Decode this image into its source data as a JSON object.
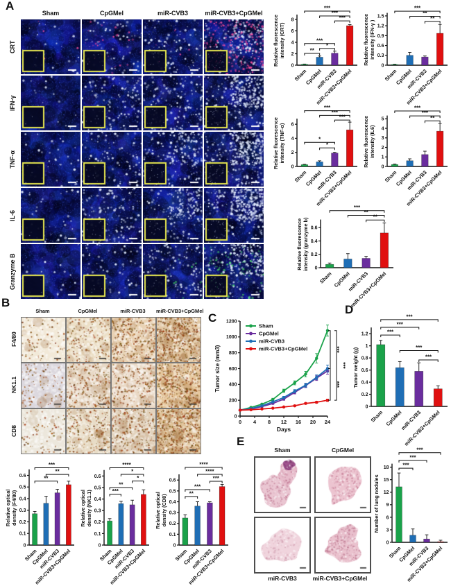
{
  "groups": [
    "Sham",
    "CpGMel",
    "miR-CVB3",
    "miR-CVB3+CpGMel"
  ],
  "colors": {
    "sham": "#1aa24a",
    "cpgmel_bar": "#1f6eb5",
    "mir_cvb3_bar": "#6a2d9e",
    "combo": "#e01010"
  },
  "panelA": {
    "label": "A",
    "col_headers": [
      "Sham",
      "CpGMel",
      "miR-CVB3",
      "miR-CVB3+CpGMel"
    ],
    "rows": [
      {
        "label": "CRT",
        "speckle": [
          0.06,
          0.18,
          0.25,
          0.45
        ],
        "accent": [
          0.02,
          0.1,
          0.02,
          0.85
        ],
        "accent_color": "#ff4fa0"
      },
      {
        "label": "IFN-γ",
        "speckle": [
          0.05,
          0.3,
          0.35,
          0.75
        ]
      },
      {
        "label": "TNF-α",
        "speckle": [
          0.08,
          0.25,
          0.45,
          0.9
        ]
      },
      {
        "label": "IL-6",
        "speckle": [
          0.1,
          0.35,
          0.5,
          0.85
        ]
      },
      {
        "label": "Granzyme B",
        "speckle": [
          0.05,
          0.15,
          0.3,
          0.55
        ],
        "accent": [
          0,
          0,
          0.05,
          0.35
        ],
        "accent_color": "#47d86a"
      }
    ]
  },
  "panelB": {
    "label": "B",
    "col_headers": [
      "Sham",
      "CpGMel",
      "miR-CVB3",
      "miR-CVB3+CpGMel"
    ],
    "rows": [
      {
        "label": "F4/80",
        "base": [
          "#f2e9d8",
          "#ecdfc6",
          "#e9d2b4",
          "#e2c8a4"
        ],
        "dots": [
          0.15,
          0.32,
          0.55,
          0.8
        ]
      },
      {
        "label": "NK1.1",
        "base": [
          "#dcd8de",
          "#e8d9c6",
          "#ead9c6",
          "#e6c89e"
        ],
        "dots": [
          0.2,
          0.45,
          0.4,
          0.7
        ]
      },
      {
        "label": "CD8",
        "base": [
          "#ece7dc",
          "#e8dcc6",
          "#e2d2bc",
          "#e0c49c"
        ],
        "dots": [
          0.15,
          0.38,
          0.45,
          0.78
        ]
      }
    ]
  },
  "panelC": {
    "label": "C"
  },
  "panelD": {
    "label": "D"
  },
  "panelE": {
    "label": "E",
    "image_labels": [
      "Sham",
      "CpGMel",
      "miR-CVB3",
      "miR-CVB3+CpGMel"
    ]
  },
  "chart_data": [
    {
      "id": "crt",
      "type": "bar",
      "panel": "A",
      "ylabel": [
        "Relative fluorescence",
        "intensity (CRT)"
      ],
      "categories": [
        "Sham",
        "CpGMel",
        "miR-CVB3",
        "miR-CVB3+CpGMel"
      ],
      "values": [
        0.15,
        1.4,
        2.1,
        6.9
      ],
      "errors": [
        0.05,
        0.2,
        0.35,
        0.2
      ],
      "ymax": 8.6,
      "ytick_labels": [
        "0",
        "2",
        "4",
        "6",
        "8"
      ],
      "sig": [
        {
          "a": 0,
          "b": 1,
          "label": "**",
          "f": 0.24
        },
        {
          "a": 1,
          "b": 2,
          "label": "*",
          "f": 0.34
        },
        {
          "a": 0,
          "b": 2,
          "label": "***",
          "f": 0.44
        },
        {
          "a": 2,
          "b": 3,
          "label": "***",
          "f": 0.9
        },
        {
          "a": 1,
          "b": 3,
          "label": "***",
          "f": 1.0
        },
        {
          "a": 0,
          "b": 3,
          "label": "***",
          "f": 1.1
        }
      ]
    },
    {
      "id": "ifng",
      "type": "bar",
      "panel": "A",
      "ylabel": [
        "Relative fluorescence",
        "intensity (IFN-γ )"
      ],
      "categories": [
        "Sham",
        "CpGMel",
        "miR-CVB3",
        "miR-CVB3+CpGMel"
      ],
      "values": [
        0.02,
        0.3,
        0.25,
        0.97
      ],
      "errors": [
        0.01,
        0.09,
        0.03,
        0.27
      ],
      "ymax": 1.55,
      "ytick_labels": [
        "0",
        "0.3",
        "0.6",
        "0.9",
        "1.2",
        "1.5"
      ],
      "sig": [
        {
          "a": 2,
          "b": 3,
          "label": "**",
          "f": 0.86
        },
        {
          "a": 1,
          "b": 3,
          "label": "**",
          "f": 0.96
        },
        {
          "a": 0,
          "b": 3,
          "label": "***",
          "f": 1.06
        }
      ]
    },
    {
      "id": "tnfa",
      "type": "bar",
      "panel": "A",
      "ylabel": [
        "Relative fluorescence",
        "intensity (TNF-α)"
      ],
      "categories": [
        "Sham",
        "CpGMel",
        "miR-CVB3",
        "miR-CVB3+CpGMel"
      ],
      "values": [
        0.25,
        0.65,
        1.9,
        5.2
      ],
      "errors": [
        0.05,
        0.15,
        0.1,
        1.1
      ],
      "ymax": 6.6,
      "ytick_labels": [
        "0",
        "2",
        "4",
        "6"
      ],
      "sig": [
        {
          "a": 1,
          "b": 2,
          "label": "*",
          "f": 0.4
        },
        {
          "a": 0,
          "b": 2,
          "label": "*",
          "f": 0.52
        },
        {
          "a": 2,
          "b": 3,
          "label": "***",
          "f": 1.0
        },
        {
          "a": 1,
          "b": 3,
          "label": "***",
          "f": 1.1
        },
        {
          "a": 0,
          "b": 3,
          "label": "***",
          "f": 1.2
        }
      ]
    },
    {
      "id": "il6",
      "type": "bar",
      "panel": "A",
      "ylabel": [
        "Relative fluorescence",
        "intensity (IL6)"
      ],
      "categories": [
        "Sham",
        "CpGMel",
        "miR-CVB3",
        "miR-CVB3+CpGMel"
      ],
      "values": [
        0.2,
        0.6,
        1.25,
        3.7
      ],
      "errors": [
        0.05,
        0.2,
        0.35,
        0.8
      ],
      "ymax": 5.2,
      "ytick_labels": [
        "0",
        "1",
        "2",
        "3",
        "4",
        "5"
      ],
      "sig": [
        {
          "a": 2,
          "b": 3,
          "label": "**",
          "f": 0.92
        },
        {
          "a": 1,
          "b": 3,
          "label": "***",
          "f": 1.02
        },
        {
          "a": 0,
          "b": 3,
          "label": "***",
          "f": 1.12
        }
      ]
    },
    {
      "id": "grzb",
      "type": "bar",
      "panel": "A",
      "ylabel": [
        "Relative fluorescence",
        "intensity (granzyme b)"
      ],
      "categories": [
        "Sham",
        "CpGMel",
        "miR-CVB3",
        "miR-CVB3+CpGMel"
      ],
      "values": [
        0.05,
        0.13,
        0.14,
        0.52
      ],
      "errors": [
        0.02,
        0.08,
        0.03,
        0.15
      ],
      "ymax": 0.7,
      "ytick_labels": [
        "0",
        "0.2",
        "0.4",
        "0.6"
      ],
      "sig": [
        {
          "a": 2,
          "b": 3,
          "label": "**",
          "f": 1.02
        },
        {
          "a": 1,
          "b": 3,
          "label": "**",
          "f": 1.12
        },
        {
          "a": 0,
          "b": 3,
          "label": "***",
          "f": 1.22
        }
      ]
    },
    {
      "id": "f480",
      "type": "bar",
      "panel": "B",
      "ylabel": [
        "Relative optical",
        "density (F4/80)"
      ],
      "categories": [
        "Sham",
        "CpGMel",
        "miR-CVB3",
        "miR-CVB3+CpGMel"
      ],
      "values": [
        0.27,
        0.36,
        0.45,
        0.52
      ],
      "errors": [
        0.02,
        0.06,
        0.03,
        0.03
      ],
      "ymax": 0.64,
      "ytick_labels": [
        "0",
        "0.1",
        "0.2",
        "0.3",
        "0.4",
        "0.5",
        "0.6"
      ],
      "sig": [
        {
          "a": 0,
          "b": 2,
          "label": "**",
          "f": 0.86
        },
        {
          "a": 1,
          "b": 3,
          "label": "**",
          "f": 0.95
        },
        {
          "a": 0,
          "b": 3,
          "label": "***",
          "f": 1.04
        }
      ]
    },
    {
      "id": "nk11",
      "type": "bar",
      "panel": "B",
      "ylabel": [
        "Relative optical",
        "density (NK1.1)"
      ],
      "categories": [
        "Sham",
        "CpGMel",
        "miR-CVB3",
        "miR-CVB3+CpGMel"
      ],
      "values": [
        0.21,
        0.36,
        0.35,
        0.44
      ],
      "errors": [
        0.02,
        0.02,
        0.04,
        0.04
      ],
      "ymax": 0.64,
      "ytick_labels": [
        "0",
        "0.1",
        "0.2",
        "0.3",
        "0.4",
        "0.5",
        "0.6"
      ],
      "sig": [
        {
          "a": 0,
          "b": 1,
          "label": "***",
          "f": 0.69
        },
        {
          "a": 0,
          "b": 2,
          "label": "**",
          "f": 0.78
        },
        {
          "a": 2,
          "b": 3,
          "label": "*",
          "f": 0.87
        },
        {
          "a": 1,
          "b": 3,
          "label": "*",
          "f": 0.96
        },
        {
          "a": 0,
          "b": 3,
          "label": "****",
          "f": 1.05
        }
      ]
    },
    {
      "id": "cd8",
      "type": "bar",
      "panel": "B",
      "ylabel": [
        "Relative optical",
        "density (CD8)"
      ],
      "categories": [
        "Sham",
        "CpGMel",
        "miR-CVB3",
        "miR-CVB3+CpGMel"
      ],
      "values": [
        0.25,
        0.36,
        0.39,
        0.54
      ],
      "errors": [
        0.03,
        0.04,
        0.01,
        0.02
      ],
      "ymax": 0.64,
      "ytick_labels": [
        "0",
        "0.1",
        "0.2",
        "0.3",
        "0.4",
        "0.5",
        "0.6"
      ],
      "sig": [
        {
          "a": 0,
          "b": 1,
          "label": "**",
          "f": 0.7
        },
        {
          "a": 0,
          "b": 2,
          "label": "***",
          "f": 0.8
        },
        {
          "a": 2,
          "b": 3,
          "label": "***",
          "f": 0.92
        },
        {
          "a": 1,
          "b": 3,
          "label": "****",
          "f": 1.02
        },
        {
          "a": 0,
          "b": 3,
          "label": "****",
          "f": 1.12
        }
      ]
    },
    {
      "id": "tumor_size",
      "type": "line",
      "panel": "C",
      "ylabel": "Tumor size (mm3)",
      "xlabel": "Days",
      "x": [
        0,
        3,
        6,
        9,
        12,
        15,
        18,
        21,
        24
      ],
      "xtick_values": [
        0,
        4,
        8,
        12,
        16,
        20,
        24
      ],
      "xtick_labels": [
        "0",
        "4",
        "8",
        "12",
        "16",
        "20",
        "24"
      ],
      "ymax": 1200,
      "ytick_step": 200,
      "series": [
        {
          "name": "Sham",
          "color": "#1aa24a",
          "values": [
            75,
            110,
            150,
            210,
            320,
            420,
            530,
            730,
            1080
          ],
          "errors": [
            5,
            8,
            10,
            15,
            20,
            25,
            35,
            60,
            70
          ]
        },
        {
          "name": "CpGMel",
          "color": "#6a2d9e",
          "values": [
            75,
            90,
            120,
            160,
            215,
            300,
            385,
            480,
            570
          ],
          "errors": [
            5,
            5,
            8,
            10,
            15,
            20,
            25,
            30,
            40
          ]
        },
        {
          "name": "miR-CVB3",
          "color": "#1f6eb5",
          "values": [
            75,
            95,
            130,
            180,
            235,
            315,
            390,
            490,
            600
          ],
          "errors": [
            5,
            5,
            8,
            10,
            15,
            20,
            25,
            30,
            45
          ]
        },
        {
          "name": "miR-CVB3+CpGMel",
          "color": "#e01010",
          "values": [
            75,
            80,
            90,
            100,
            115,
            130,
            160,
            175,
            200
          ],
          "errors": [
            4,
            4,
            5,
            6,
            8,
            8,
            10,
            12,
            15
          ]
        }
      ],
      "sig": [
        {
          "y1": 1080,
          "y2": 600,
          "label": "***",
          "off": 0
        },
        {
          "y1": 600,
          "y2": 200,
          "label": "***",
          "off": 0
        },
        {
          "y1": 1080,
          "y2": 200,
          "label": "***",
          "off": 9
        }
      ]
    },
    {
      "id": "tumor_weight",
      "type": "bar",
      "panel": "D",
      "ylabel": [
        "Tumor weight (g)"
      ],
      "categories": [
        "Sham",
        "CpGMel",
        "miR-CVB3",
        "miR-CVB3+CpGMel"
      ],
      "values": [
        1.02,
        0.64,
        0.58,
        0.29
      ],
      "errors": [
        0.07,
        0.1,
        0.14,
        0.05
      ],
      "ymax": 1.28,
      "ytick_labels": [
        "0",
        "0.2",
        "0.4",
        "0.6",
        "0.8",
        "1",
        "1.2"
      ],
      "sig": [
        {
          "a": 2,
          "b": 3,
          "label": "***",
          "f": 0.6
        },
        {
          "a": 1,
          "b": 3,
          "label": "***",
          "f": 0.72
        },
        {
          "a": 0,
          "b": 1,
          "label": "***",
          "f": 0.92
        },
        {
          "a": 0,
          "b": 2,
          "label": "***",
          "f": 1.02
        },
        {
          "a": 0,
          "b": 3,
          "label": "***",
          "f": 1.12
        }
      ]
    },
    {
      "id": "lung_nodules",
      "type": "bar",
      "panel": "E",
      "ylabel": [
        "Number of lung nodules"
      ],
      "categories": [
        "Sham",
        "CpGMel",
        "miR-CVB3",
        "miR-CVB3+CpGMel"
      ],
      "values": [
        13.3,
        1.7,
        0.8,
        0.15
      ],
      "errors": [
        3.3,
        1.5,
        1.0,
        0.35
      ],
      "ymax": 18.5,
      "ytick_labels": [
        "0",
        "3",
        "6",
        "9",
        "12",
        "15",
        "18"
      ],
      "sig": [
        {
          "a": 0,
          "b": 1,
          "label": "***",
          "f": 0.96
        },
        {
          "a": 0,
          "b": 2,
          "label": "***",
          "f": 1.06
        },
        {
          "a": 0,
          "b": 3,
          "label": "***",
          "f": 1.16
        }
      ]
    }
  ]
}
